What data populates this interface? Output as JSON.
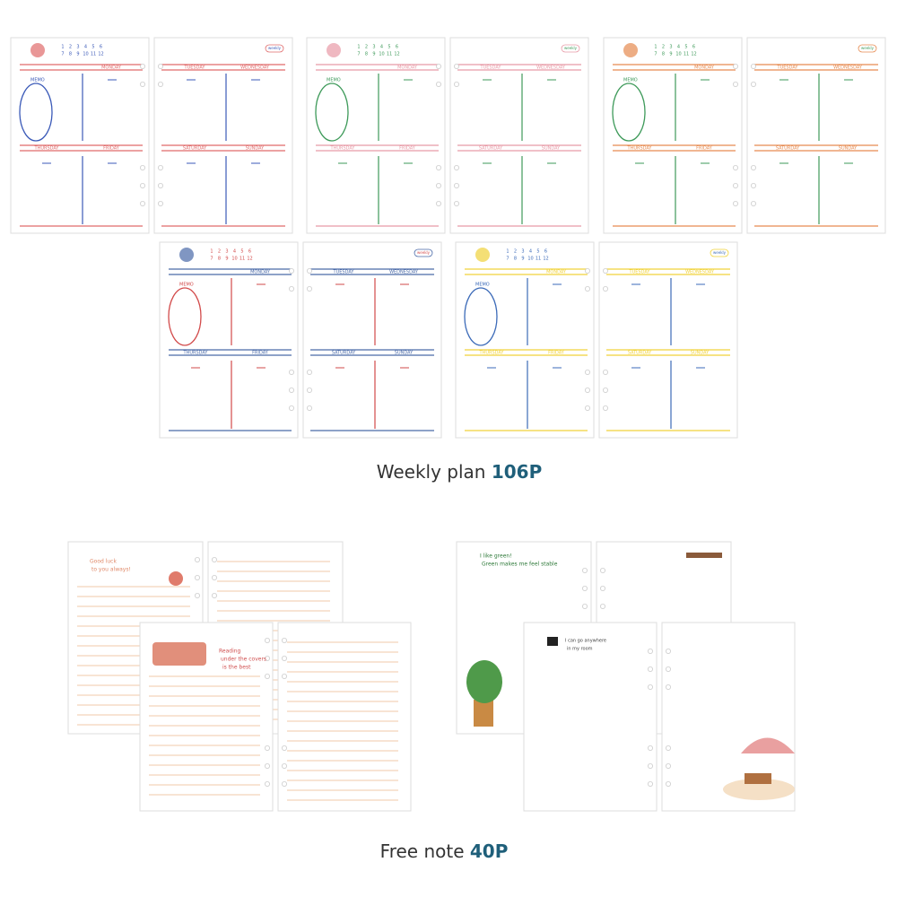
{
  "weekly": {
    "title": "Weekly plan",
    "count": "106P",
    "days": [
      "MONDAY",
      "TUESDAY",
      "WEDNESDAY",
      "THURSDAY",
      "FRIDAY",
      "SATURDAY",
      "SUNDAY"
    ],
    "memo": "MEMO",
    "badge": "weekly",
    "hours": [
      1,
      2,
      3,
      4,
      5,
      6,
      7,
      8,
      9,
      10,
      11,
      12
    ]
  },
  "free_note": {
    "title": "Free note",
    "count": "40P",
    "quotes": [
      [
        "Good luck",
        "to you always!"
      ],
      [
        "Reading",
        "under the covers",
        "is the best"
      ],
      [
        "I like green!",
        "Green makes me feel stable"
      ],
      [
        "I can go anywhere",
        "in my room"
      ]
    ]
  }
}
